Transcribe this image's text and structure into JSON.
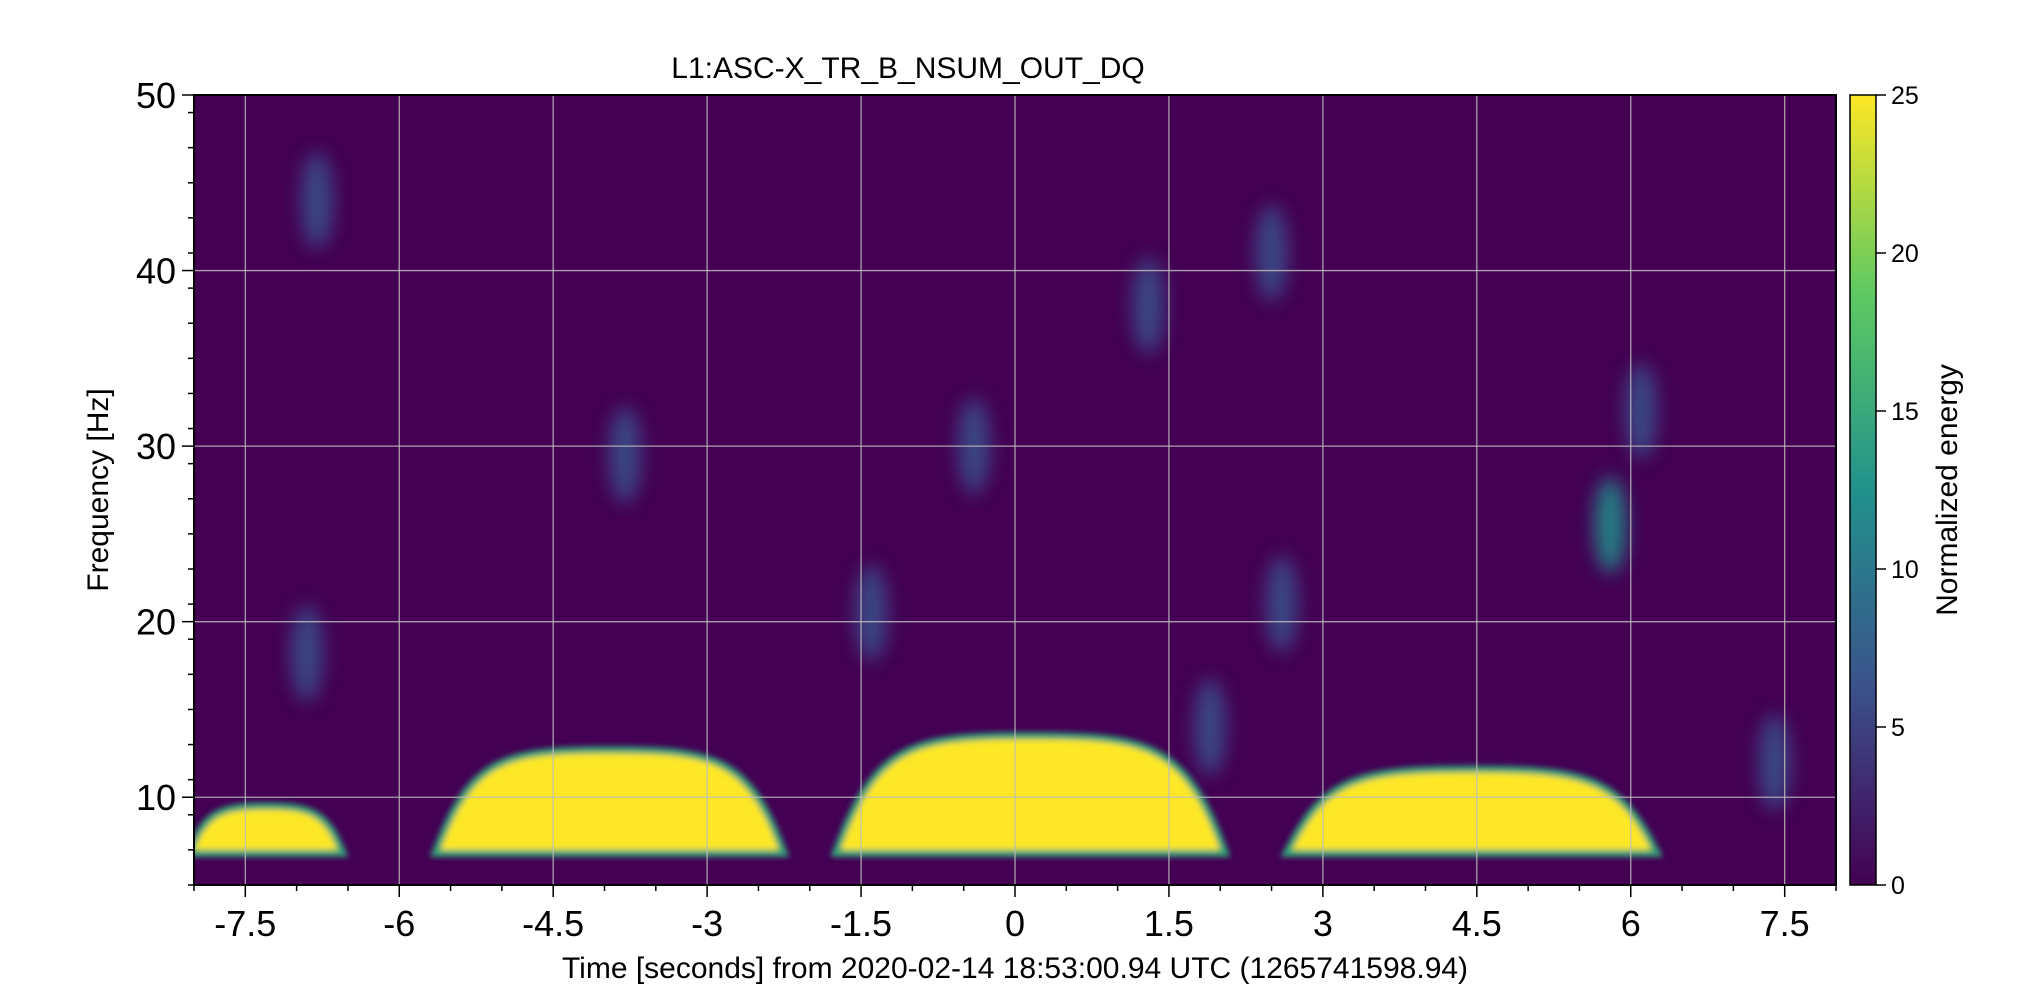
{
  "chart_data": {
    "type": "heatmap",
    "title": "L1:ASC-X_TR_B_NSUM_OUT_DQ",
    "xlabel": "Time [seconds] from 2020-02-14 18:53:00.94 UTC (1265741598.94)",
    "ylabel": "Frequency [Hz]",
    "xlim": [
      -8,
      8
    ],
    "ylim": [
      5,
      50
    ],
    "x_ticks": [
      -7.5,
      -6,
      -4.5,
      -3,
      -1.5,
      0,
      1.5,
      3,
      4.5,
      6,
      7.5
    ],
    "x_tick_labels": [
      "-7.5",
      "-6",
      "-4.5",
      "-3",
      "-1.5",
      "0",
      "1.5",
      "3",
      "4.5",
      "6",
      "7.5"
    ],
    "y_ticks": [
      10,
      20,
      30,
      40,
      50
    ],
    "y_tick_labels": [
      "10",
      "20",
      "30",
      "40",
      "50"
    ],
    "grid": true,
    "colorbar": {
      "label": "Normalized energy",
      "range": [
        0,
        25
      ],
      "ticks": [
        0,
        5,
        10,
        15,
        20,
        25
      ],
      "tick_labels": [
        "0",
        "5",
        "10",
        "15",
        "20",
        "25"
      ],
      "colormap": "viridis",
      "colors": [
        "#440154",
        "#3b528b",
        "#21918c",
        "#5ec962",
        "#fde725"
      ]
    },
    "background_level": 1.5,
    "high_energy_regions": [
      {
        "x_start": -8.0,
        "x_end": -6.6,
        "f_low": 7.0,
        "f_high": 9.3,
        "energy": 25
      },
      {
        "x_start": -5.6,
        "x_end": -2.3,
        "f_low": 7.0,
        "f_high": 12.5,
        "energy": 25
      },
      {
        "x_start": -1.7,
        "x_end": 2.0,
        "f_low": 7.0,
        "f_high": 13.3,
        "energy": 25
      },
      {
        "x_start": 2.7,
        "x_end": 6.2,
        "f_low": 7.0,
        "f_high": 11.4,
        "energy": 25
      }
    ],
    "minor_features": [
      {
        "x": -3.8,
        "f": 29.5,
        "energy": 9
      },
      {
        "x": 5.8,
        "f": 25.5,
        "energy": 12
      },
      {
        "x": 6.1,
        "f": 32.0,
        "energy": 8
      },
      {
        "x": -6.9,
        "f": 18.2,
        "energy": 7
      },
      {
        "x": 2.6,
        "f": 21.0,
        "energy": 6
      },
      {
        "x": 1.9,
        "f": 14.0,
        "energy": 8
      },
      {
        "x": 7.4,
        "f": 12.0,
        "energy": 7
      },
      {
        "x": -1.4,
        "f": 20.5,
        "energy": 6
      },
      {
        "x": 2.5,
        "f": 41.0,
        "energy": 6
      },
      {
        "x": -6.8,
        "f": 44.0,
        "energy": 5
      },
      {
        "x": 1.3,
        "f": 38.0,
        "energy": 5
      },
      {
        "x": -0.4,
        "f": 30.0,
        "energy": 6
      }
    ]
  }
}
